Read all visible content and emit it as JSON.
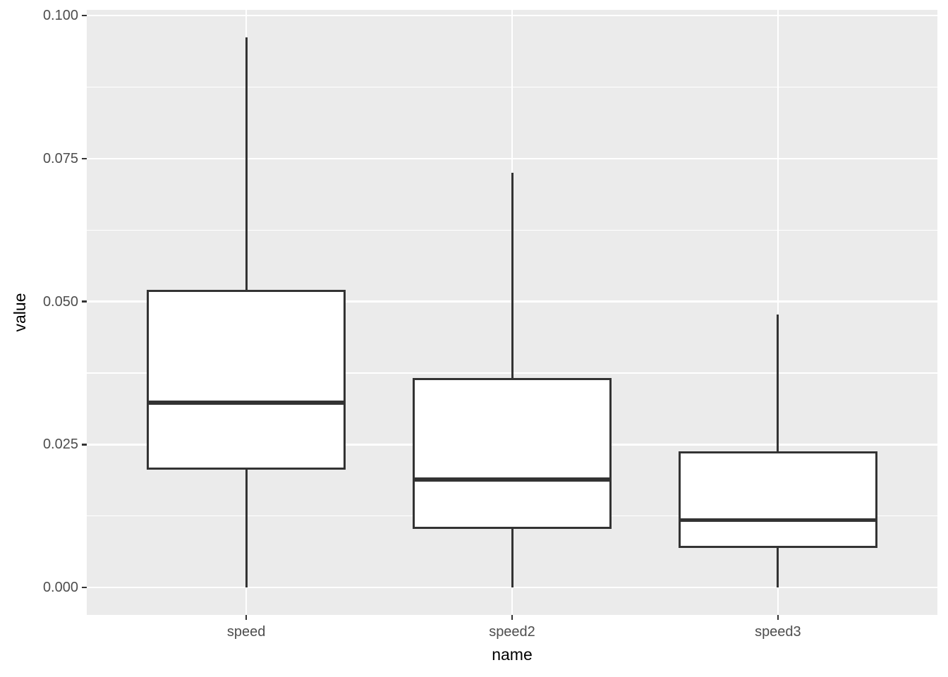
{
  "figure": {
    "background": "#FFFFFF",
    "panel_background": "#EBEBEB",
    "grid_color": "#FFFFFF",
    "box_border_color": "#333333",
    "box_fill": "#FFFFFF",
    "median_color": "#333333",
    "whisker_color": "#333333",
    "tick_mark_color": "#333333",
    "tick_label_color": "#4D4D4D",
    "axis_title_color": "#000000"
  },
  "chart_data": {
    "type": "boxplot",
    "title": "",
    "xlabel": "name",
    "ylabel": "value",
    "categories": [
      "speed",
      "speed2",
      "speed3"
    ],
    "series": [
      {
        "name": "speed",
        "whisker_low": 0.0,
        "q1": 0.0206,
        "median": 0.0323,
        "q3": 0.052,
        "whisker_high": 0.0962
      },
      {
        "name": "speed2",
        "whisker_low": 0.0,
        "q1": 0.0102,
        "median": 0.0189,
        "q3": 0.0366,
        "whisker_high": 0.0725
      },
      {
        "name": "speed3",
        "whisker_low": 0.0,
        "q1": 0.0069,
        "median": 0.0118,
        "q3": 0.0238,
        "whisker_high": 0.0477
      }
    ],
    "ylim": [
      -0.0048,
      0.101
    ],
    "y_major_ticks": [
      0.0,
      0.025,
      0.05,
      0.075,
      0.1
    ],
    "y_tick_labels": [
      "0.000",
      "0.025",
      "0.050",
      "0.075",
      "0.100"
    ],
    "y_minor_ticks": [
      0.0125,
      0.0375,
      0.0625,
      0.0875
    ],
    "grid": true,
    "legend": false,
    "box_width_ratio": 0.75,
    "x_band_padding": 0.6
  }
}
